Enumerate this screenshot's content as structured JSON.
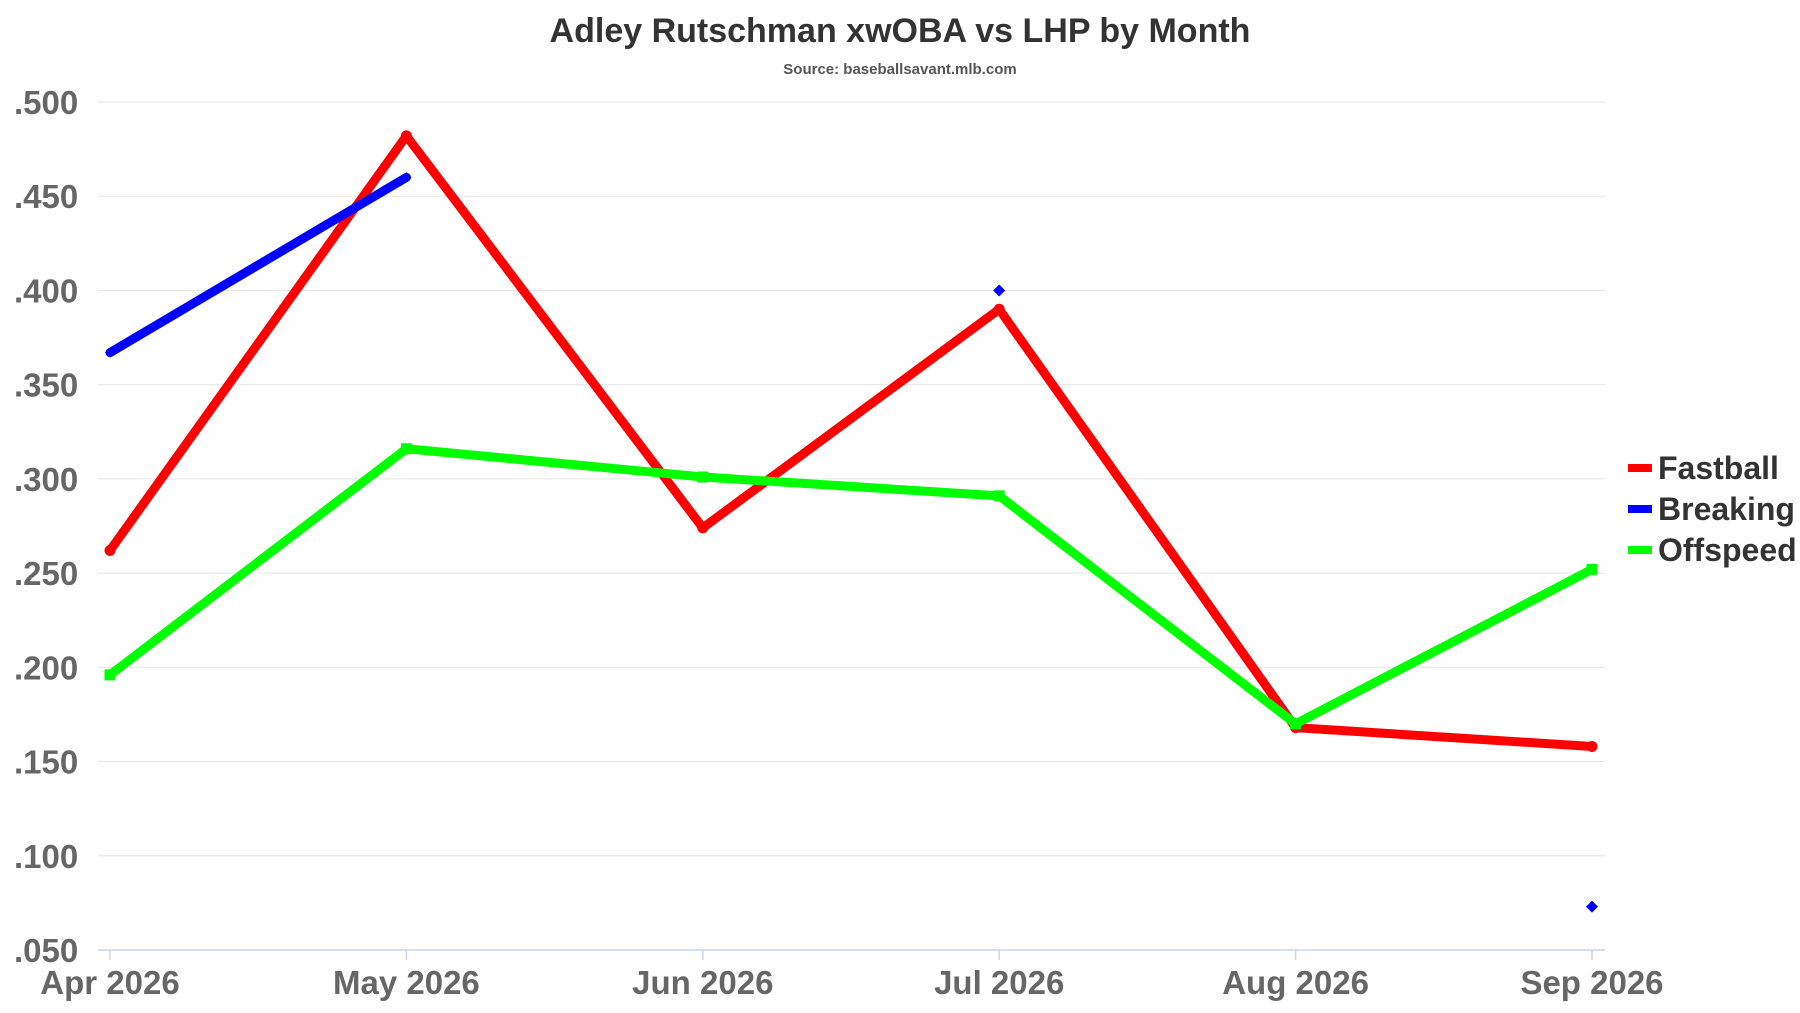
{
  "chart_data": {
    "type": "line",
    "title": "Adley Rutschman xwOBA vs LHP by Month",
    "subtitle": "Source: baseballsavant.mlb.com",
    "categories": [
      "Apr 2026",
      "May 2026",
      "Jun 2026",
      "Jul 2026",
      "Aug 2026",
      "Sep 2026"
    ],
    "ylim": [
      0.05,
      0.5
    ],
    "yticks": [
      ".500",
      ".450",
      ".400",
      ".350",
      ".300",
      ".250",
      ".200",
      ".150",
      ".100",
      ".050"
    ],
    "ytick_values": [
      0.5,
      0.45,
      0.4,
      0.35,
      0.3,
      0.25,
      0.2,
      0.15,
      0.1,
      0.05
    ],
    "grid": true,
    "legend_position": "right",
    "series": [
      {
        "name": "Fastball",
        "color": "#ff0000",
        "values": [
          0.262,
          0.482,
          0.274,
          0.39,
          0.168,
          0.158
        ]
      },
      {
        "name": "Breaking",
        "color": "#0000ff",
        "values": [
          0.367,
          0.46,
          null,
          0.4,
          null,
          0.073
        ]
      },
      {
        "name": "Offspeed",
        "color": "#00ff00",
        "values": [
          0.196,
          0.316,
          0.301,
          0.291,
          0.17,
          0.252
        ]
      }
    ]
  }
}
